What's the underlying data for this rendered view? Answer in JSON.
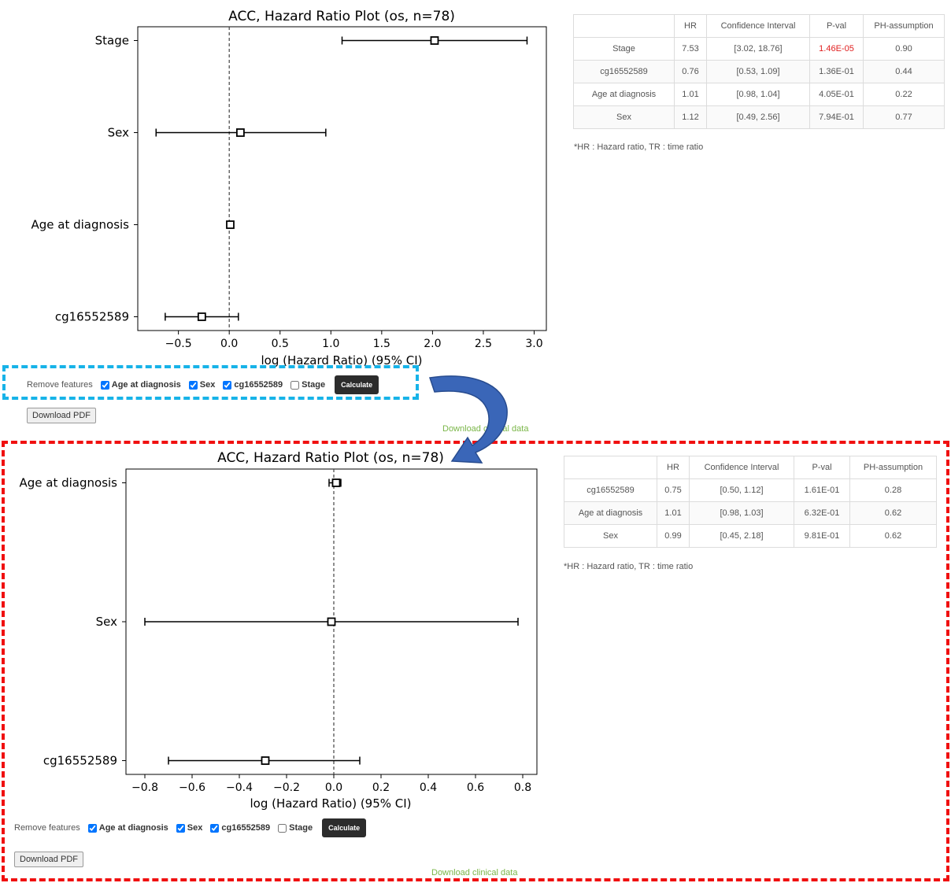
{
  "top": {
    "chart_data": {
      "type": "scatter",
      "title": "ACC, Hazard Ratio Plot (os, n=78)",
      "xlabel": "log (Hazard Ratio) (95% CI)",
      "ylabel": "",
      "xlim": [
        -0.9,
        3.12
      ],
      "xticks": [
        -0.5,
        0.0,
        0.5,
        1.0,
        1.5,
        2.0,
        2.5,
        3.0
      ],
      "xtick_labels": [
        "−0.5",
        "0.0",
        "0.5",
        "1.0",
        "1.5",
        "2.0",
        "2.5",
        "3.0"
      ],
      "reference_line": 0,
      "categories": [
        "Stage",
        "Sex",
        "Age at diagnosis",
        "cg16552589"
      ],
      "points": [
        {
          "label": "Stage",
          "x": 2.02,
          "lo": 1.11,
          "hi": 2.93
        },
        {
          "label": "Sex",
          "x": 0.11,
          "lo": -0.72,
          "hi": 0.95
        },
        {
          "label": "Age at diagnosis",
          "x": 0.01,
          "lo": -0.02,
          "hi": 0.04
        },
        {
          "label": "cg16552589",
          "x": -0.27,
          "lo": -0.63,
          "hi": 0.09
        }
      ]
    },
    "table": {
      "headers": [
        "",
        "HR",
        "Confidence Interval",
        "P-val",
        "PH-assumption"
      ],
      "rows": [
        {
          "name": "Stage",
          "hr": "7.53",
          "ci": "[3.02, 18.76]",
          "pval": "1.46E-05",
          "ph": "0.90"
        },
        {
          "name": "cg16552589",
          "hr": "0.76",
          "ci": "[0.53, 1.09]",
          "pval": "1.36E-01",
          "ph": "0.44"
        },
        {
          "name": "Age at diagnosis",
          "hr": "1.01",
          "ci": "[0.98, 1.04]",
          "pval": "4.05E-01",
          "ph": "0.22"
        },
        {
          "name": "Sex",
          "hr": "1.12",
          "ci": "[0.49, 2.56]",
          "pval": "7.94E-01",
          "ph": "0.77"
        }
      ],
      "significant_color": "#e02020"
    },
    "footnote": "*HR : Hazard ratio, TR : time ratio",
    "controls": {
      "remove_label": "Remove features",
      "options": [
        {
          "label": "Age at diagnosis",
          "checked": true
        },
        {
          "label": "Sex",
          "checked": true
        },
        {
          "label": "cg16552589",
          "checked": true
        },
        {
          "label": "Stage",
          "checked": false
        }
      ],
      "calculate_label": "Calculate"
    },
    "download_pdf": "Download PDF",
    "download_clinical": "Download clinical data"
  },
  "bottom": {
    "chart_data": {
      "type": "scatter",
      "title": "ACC, Hazard Ratio Plot (os, n=78)",
      "xlabel": "log (Hazard Ratio) (95% CI)",
      "ylabel": "",
      "xlim": [
        -0.88,
        0.86
      ],
      "xticks": [
        -0.8,
        -0.6,
        -0.4,
        -0.2,
        0.0,
        0.2,
        0.4,
        0.6,
        0.8
      ],
      "xtick_labels": [
        "−0.8",
        "−0.6",
        "−0.4",
        "−0.2",
        "0.0",
        "0.2",
        "0.4",
        "0.6",
        "0.8"
      ],
      "reference_line": 0,
      "categories": [
        "Age at diagnosis",
        "Sex",
        "cg16552589"
      ],
      "points": [
        {
          "label": "Age at diagnosis",
          "x": 0.01,
          "lo": -0.02,
          "hi": 0.03
        },
        {
          "label": "Sex",
          "x": -0.01,
          "lo": -0.8,
          "hi": 0.78
        },
        {
          "label": "cg16552589",
          "x": -0.29,
          "lo": -0.7,
          "hi": 0.11
        }
      ]
    },
    "table": {
      "headers": [
        "",
        "HR",
        "Confidence Interval",
        "P-val",
        "PH-assumption"
      ],
      "rows": [
        {
          "name": "cg16552589",
          "hr": "0.75",
          "ci": "[0.50, 1.12]",
          "pval": "1.61E-01",
          "ph": "0.28"
        },
        {
          "name": "Age at diagnosis",
          "hr": "1.01",
          "ci": "[0.98, 1.03]",
          "pval": "6.32E-01",
          "ph": "0.62"
        },
        {
          "name": "Sex",
          "hr": "0.99",
          "ci": "[0.45, 2.18]",
          "pval": "9.81E-01",
          "ph": "0.62"
        }
      ]
    },
    "footnote": "*HR : Hazard ratio, TR : time ratio",
    "controls": {
      "remove_label": "Remove features",
      "options": [
        {
          "label": "Age at diagnosis",
          "checked": true
        },
        {
          "label": "Sex",
          "checked": true
        },
        {
          "label": "cg16552589",
          "checked": true
        },
        {
          "label": "Stage",
          "checked": false
        }
      ],
      "calculate_label": "Calculate"
    },
    "download_pdf": "Download PDF",
    "download_clinical": "Download clinical data"
  },
  "annotation_colors": {
    "blue_box": "#17b3e8",
    "red_box": "#f01010",
    "arrow": "#3a66b8"
  }
}
